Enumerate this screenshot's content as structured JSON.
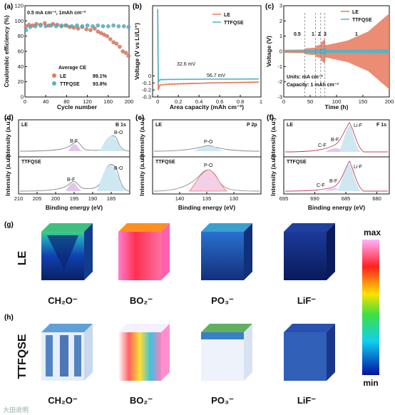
{
  "colors": {
    "le": "#e8785c",
    "ttfqse": "#4fb5c8",
    "le_fill": "#f4c7b5",
    "ttfqse_fill": "#cfe7f1",
    "bf": "#b07ac0",
    "bo": "#57b6d4"
  },
  "panels": {
    "a": {
      "letter": "(a)",
      "condition": "0.5 mA cm⁻², 1mAh cm⁻²",
      "avg_title": "Average CE",
      "le_name": "LE",
      "le_ce": "89.1%",
      "tt_name": "TTFQSE",
      "tt_ce": "93.8%"
    },
    "b": {
      "letter": "(b)",
      "le_name": "LE",
      "tt_name": "TTFQSE",
      "ov_tt": "32.6 mV",
      "ov_le": "56.7 mV"
    },
    "c": {
      "letter": "(c)",
      "le_name": "LE",
      "tt_name": "TTFQSE",
      "rate_labels": [
        "0.5",
        "1",
        "2",
        "3",
        "1"
      ],
      "units": "Units: mA cm⁻²",
      "capacity": "Capacity: 1 mAh cm⁻²"
    },
    "d": {
      "letter": "(d)",
      "title": "B 1s",
      "top": "LE",
      "bottom": "TTFQSE",
      "peak1": "B-F",
      "peak2": "B-O"
    },
    "e": {
      "letter": "(e)",
      "title": "P 2p",
      "top": "LE",
      "bottom": "TTFQSE",
      "peak": "P-O"
    },
    "f": {
      "letter": "(f)",
      "title": "F 1s",
      "top": "LE",
      "bottom": "TTFQSE",
      "p1": "C-F",
      "p2": "B-F",
      "p3": "Li-F"
    },
    "g": {
      "letter": "(g)",
      "row": "LE"
    },
    "h": {
      "letter": "(h)",
      "row": "TTFQSE"
    }
  },
  "tof_labels": [
    "CH₂O⁻",
    "BO₂⁻",
    "PO₃⁻",
    "LiF⁻"
  ],
  "colorbar": {
    "max": "max",
    "min": "min"
  },
  "watermark": "大田说明",
  "chart_data": [
    {
      "type": "scatter",
      "panel": "a",
      "xlabel": "Cycle number",
      "ylabel": "Coulombic efficiency (%)",
      "xlim": [
        0,
        200
      ],
      "ylim": [
        0,
        120
      ],
      "xticks": [
        0,
        40,
        80,
        120,
        160,
        200
      ],
      "yticks": [
        0,
        20,
        40,
        60,
        80,
        100,
        120
      ],
      "series": [
        {
          "name": "LE",
          "x": [
            2,
            8,
            15,
            22,
            30,
            38,
            46,
            54,
            62,
            70,
            78,
            86,
            94,
            102,
            110,
            118,
            126,
            134,
            140,
            146,
            152,
            158,
            164,
            170,
            176,
            182,
            188,
            194,
            199
          ],
          "y": [
            93,
            95,
            94,
            96,
            95,
            97,
            94,
            96,
            95,
            93,
            94,
            92,
            91,
            90,
            92,
            89,
            88,
            90,
            86,
            84,
            82,
            80,
            76,
            72,
            70,
            66,
            60,
            58,
            54
          ]
        },
        {
          "name": "TTFQSE",
          "x": [
            2,
            10,
            20,
            30,
            40,
            50,
            60,
            70,
            80,
            90,
            100,
            110,
            120,
            130,
            140,
            150,
            160,
            170,
            180,
            190,
            199
          ],
          "y": [
            88,
            92,
            93,
            94,
            93,
            94,
            93,
            94,
            94,
            93,
            94,
            93,
            94,
            93,
            94,
            93,
            93,
            94,
            93,
            93,
            92
          ]
        }
      ]
    },
    {
      "type": "line",
      "panel": "b",
      "xlabel": "Area capacity (mAh cm⁻²)",
      "ylabel": "Voltage (V vs Li/Li⁺)",
      "xlim": [
        -0.05,
        1.0
      ],
      "ylim": [
        -0.3,
        1.0
      ],
      "xticks": [
        0.0,
        0.2,
        0.4,
        0.6,
        0.8,
        1.0
      ],
      "yticks": [
        -0.3,
        -0.2,
        -0.1,
        0.0
      ],
      "series": [
        {
          "name": "LE",
          "x": [
            0,
            0.005,
            0.02,
            0.1,
            0.3,
            0.5,
            0.7,
            0.9,
            0.98
          ],
          "y": [
            0.95,
            -0.2,
            -0.13,
            -0.12,
            -0.11,
            -0.1,
            -0.095,
            -0.09,
            -0.087
          ]
        },
        {
          "name": "TTFQSE",
          "x": [
            0,
            0.005,
            0.02,
            0.1,
            0.3,
            0.5,
            0.7,
            0.9,
            0.98
          ],
          "y": [
            0.95,
            -0.09,
            -0.055,
            -0.05,
            -0.048,
            -0.046,
            -0.045,
            -0.044,
            -0.043
          ]
        }
      ]
    },
    {
      "type": "line",
      "panel": "c",
      "xlabel": "Time (h)",
      "ylabel": "Voltage (V)",
      "xlim": [
        0,
        200
      ],
      "ylim": [
        -3,
        3
      ],
      "xticks": [
        0,
        50,
        100,
        150,
        200
      ],
      "yticks": [
        -3,
        -2,
        -1,
        0,
        1,
        2,
        3
      ],
      "series": [
        {
          "name": "LE",
          "x": [
            0,
            40,
            41,
            60,
            61,
            70,
            71,
            78,
            79,
            120,
            160,
            200
          ],
          "y": [
            0.1,
            0.12,
            0.2,
            0.25,
            0.35,
            0.45,
            0.6,
            0.8,
            0.4,
            0.7,
            1.3,
            2.5
          ]
        },
        {
          "name": "TTFQSE",
          "x": [
            0,
            40,
            41,
            60,
            61,
            70,
            71,
            78,
            79,
            200
          ],
          "y": [
            0.05,
            0.06,
            0.08,
            0.09,
            0.12,
            0.14,
            0.18,
            0.22,
            0.1,
            0.12
          ]
        }
      ]
    },
    {
      "type": "line",
      "panel": "d",
      "xlabel": "Binding energy (eV)",
      "ylabel": "Intensity (a.u.)",
      "xlim": [
        210,
        180
      ],
      "xticks": [
        210,
        205,
        200,
        195,
        190,
        185
      ]
    },
    {
      "type": "line",
      "panel": "e",
      "xlabel": "Binding energy (eV)",
      "ylabel": "Intensity (a.u.)",
      "xlim": [
        145,
        125
      ],
      "xticks": [
        140,
        135,
        130
      ]
    },
    {
      "type": "line",
      "panel": "f",
      "xlabel": "Binding energy (eV)",
      "ylabel": "Intensity (a.u.)",
      "xlim": [
        695,
        678
      ],
      "xticks": [
        695,
        690,
        685,
        680
      ]
    }
  ]
}
